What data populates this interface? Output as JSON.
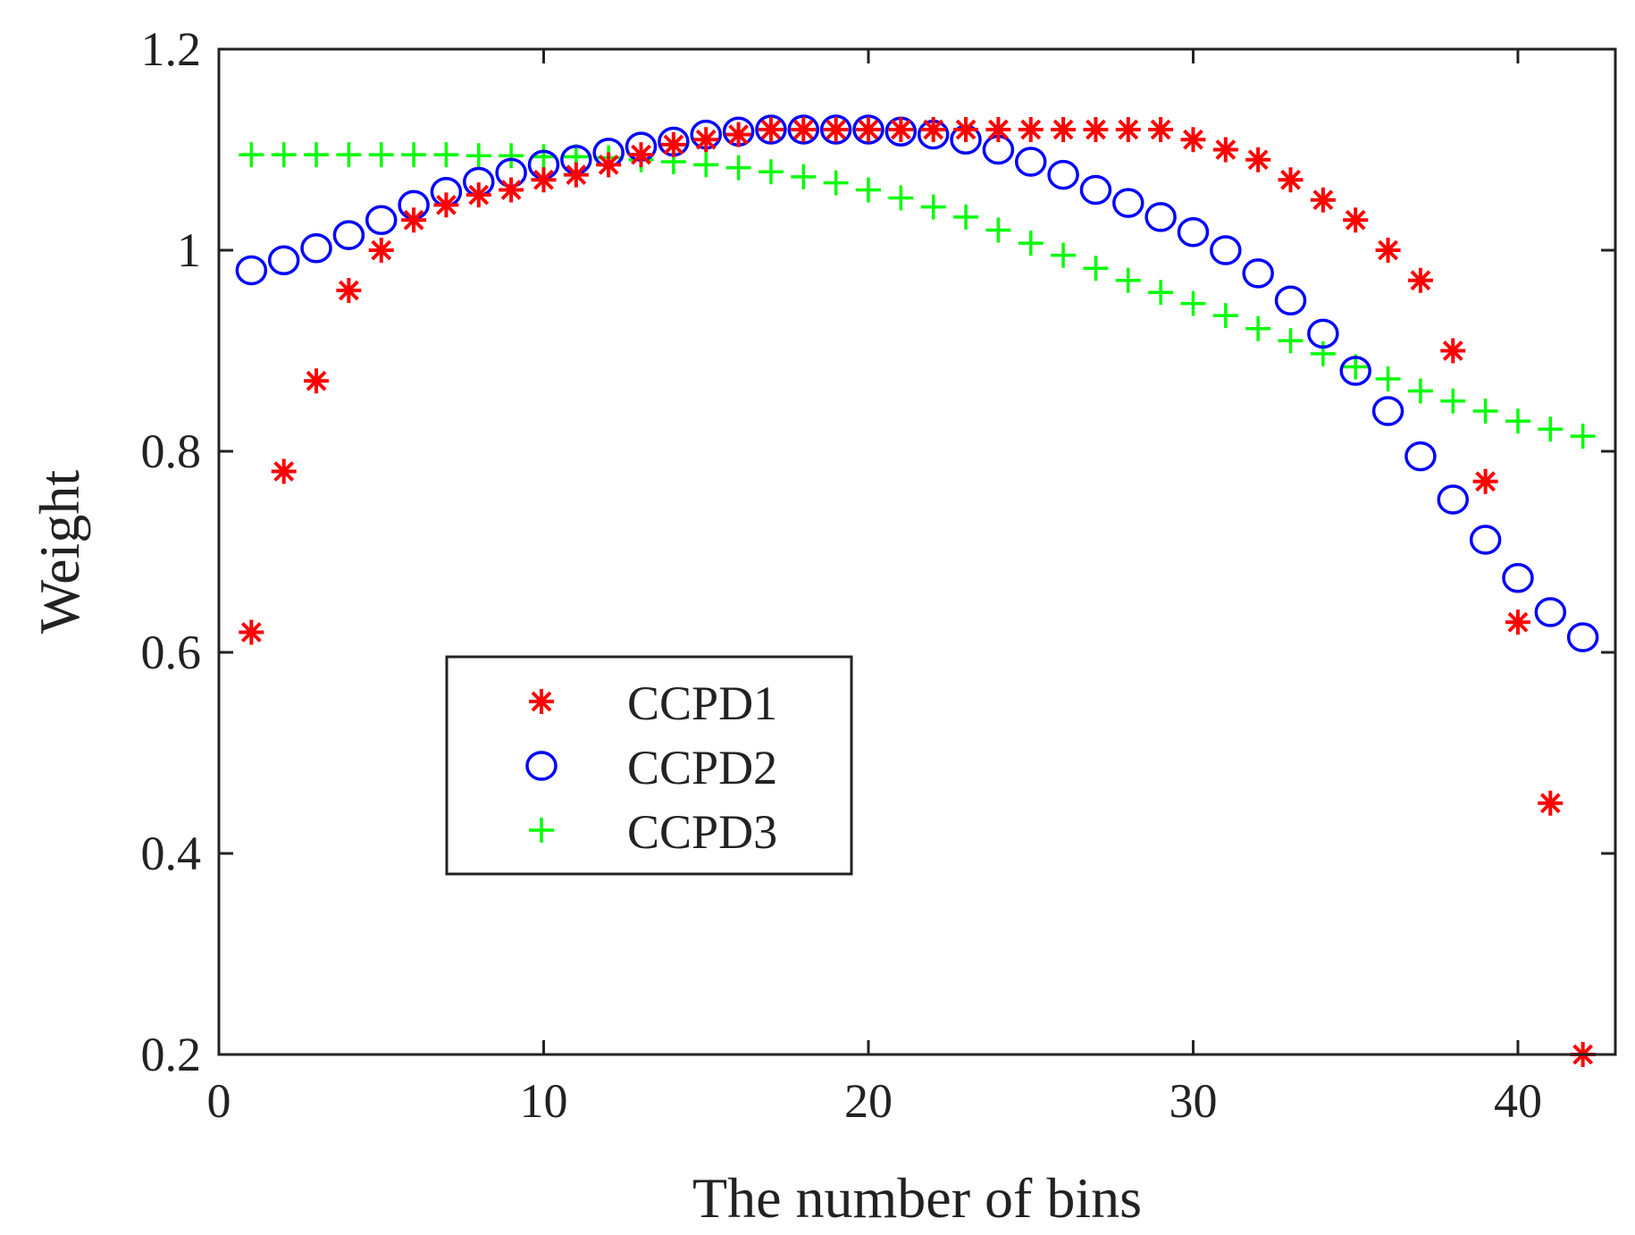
{
  "chart_data": {
    "type": "scatter",
    "title": "",
    "xlabel": "The number of bins",
    "ylabel": "Weight",
    "xlim": [
      0,
      43
    ],
    "ylim": [
      0.2,
      1.2
    ],
    "xticks": [
      0,
      10,
      20,
      30,
      40
    ],
    "xtick_labels": [
      "0",
      "10",
      "20",
      "30",
      "40"
    ],
    "yticks": [
      0.2,
      0.4,
      0.6,
      0.8,
      1.0,
      1.2
    ],
    "ytick_labels": [
      "0.2",
      "0.4",
      "0.6",
      "0.8",
      "1",
      "1.2"
    ],
    "grid": false,
    "legend_position": "center-left",
    "x": [
      1,
      2,
      3,
      4,
      5,
      6,
      7,
      8,
      9,
      10,
      11,
      12,
      13,
      14,
      15,
      16,
      17,
      18,
      19,
      20,
      21,
      22,
      23,
      24,
      25,
      26,
      27,
      28,
      29,
      30,
      31,
      32,
      33,
      34,
      35,
      36,
      37,
      38,
      39,
      40,
      41,
      42
    ],
    "series": [
      {
        "name": "CCPD1",
        "marker": "asterisk",
        "color": "#ff0000",
        "values": [
          0.62,
          0.78,
          0.87,
          0.96,
          1.0,
          1.03,
          1.045,
          1.055,
          1.06,
          1.07,
          1.075,
          1.085,
          1.095,
          1.105,
          1.11,
          1.115,
          1.12,
          1.12,
          1.12,
          1.12,
          1.12,
          1.12,
          1.12,
          1.12,
          1.12,
          1.12,
          1.12,
          1.12,
          1.12,
          1.11,
          1.1,
          1.09,
          1.07,
          1.05,
          1.03,
          1.0,
          0.97,
          0.9,
          0.77,
          0.63,
          0.45,
          0.2
        ]
      },
      {
        "name": "CCPD2",
        "marker": "circle",
        "color": "#0000ff",
        "values": [
          0.98,
          0.99,
          1.002,
          1.015,
          1.03,
          1.045,
          1.058,
          1.068,
          1.077,
          1.085,
          1.09,
          1.097,
          1.103,
          1.108,
          1.115,
          1.118,
          1.12,
          1.12,
          1.12,
          1.12,
          1.118,
          1.115,
          1.11,
          1.1,
          1.088,
          1.075,
          1.06,
          1.047,
          1.033,
          1.018,
          1.0,
          0.977,
          0.95,
          0.917,
          0.88,
          0.84,
          0.795,
          0.752,
          0.712,
          0.674,
          0.64,
          0.615
        ]
      },
      {
        "name": "CCPD3",
        "marker": "plus",
        "color": "#00ff00",
        "values": [
          1.095,
          1.095,
          1.095,
          1.095,
          1.095,
          1.095,
          1.095,
          1.094,
          1.094,
          1.093,
          1.093,
          1.092,
          1.09,
          1.088,
          1.085,
          1.082,
          1.078,
          1.073,
          1.067,
          1.06,
          1.052,
          1.043,
          1.033,
          1.02,
          1.007,
          0.995,
          0.982,
          0.97,
          0.958,
          0.947,
          0.935,
          0.922,
          0.91,
          0.897,
          0.884,
          0.872,
          0.86,
          0.85,
          0.84,
          0.83,
          0.822,
          0.815
        ]
      }
    ]
  }
}
